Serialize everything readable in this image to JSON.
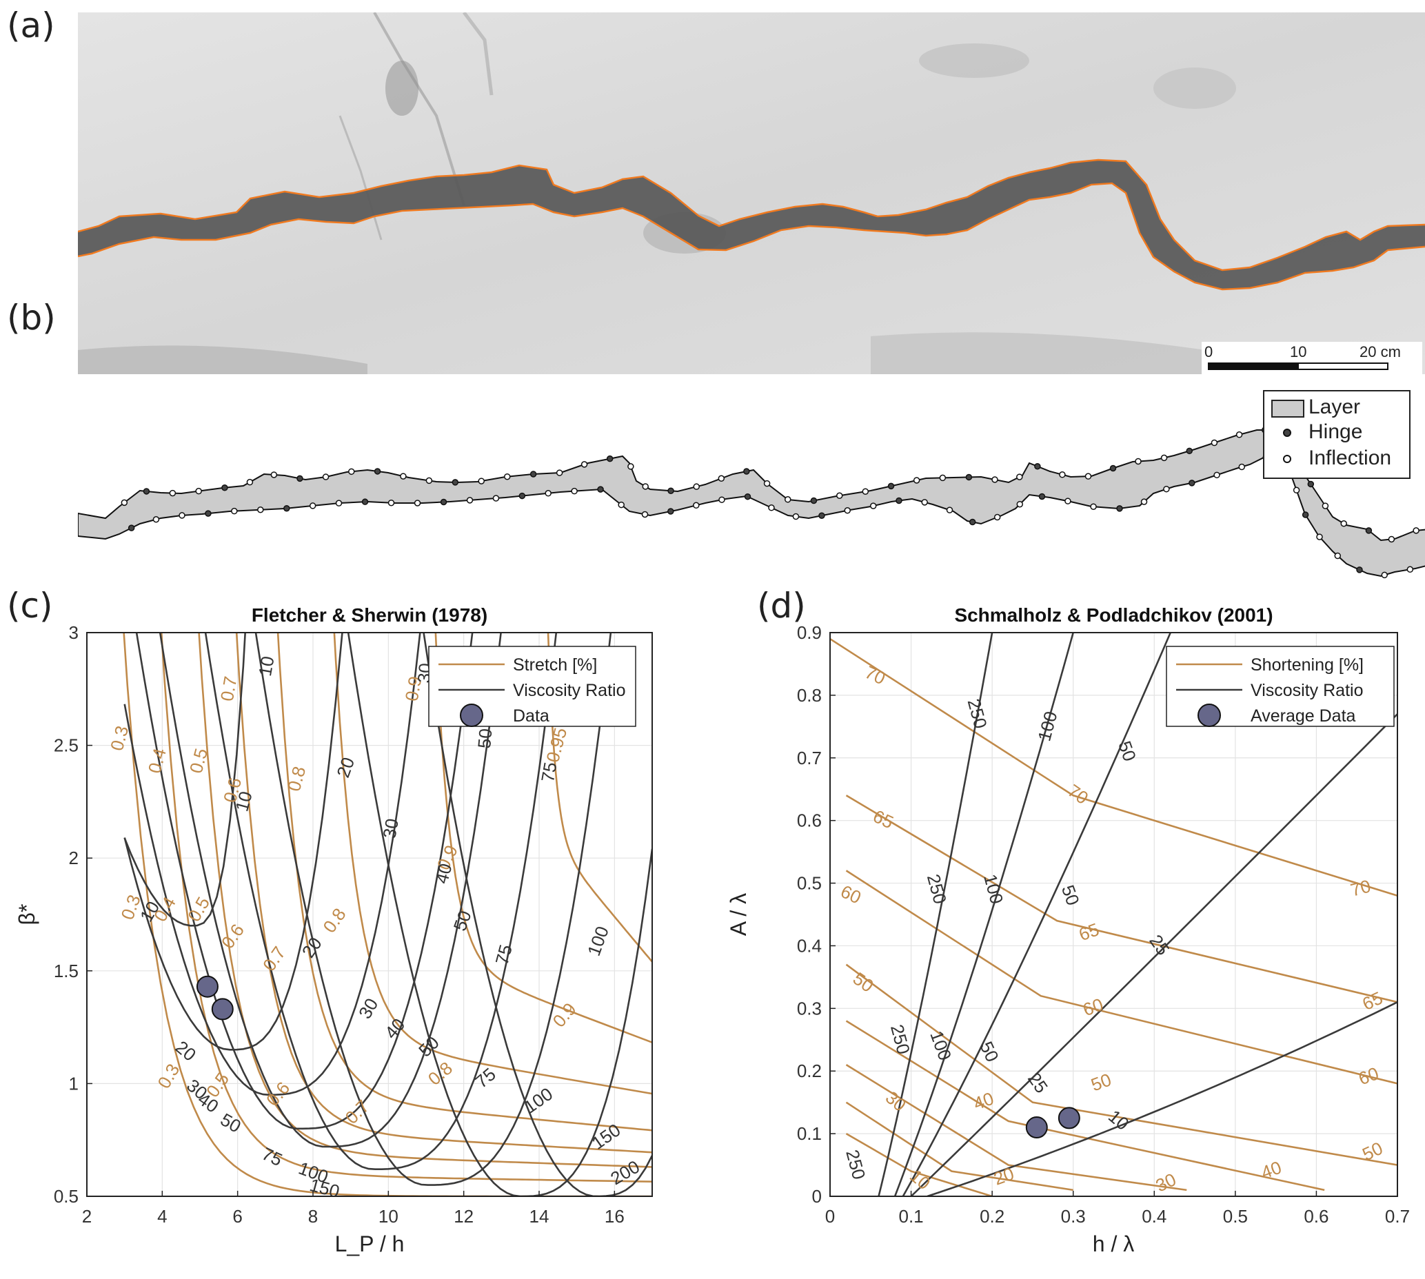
{
  "panels": {
    "a": {
      "letter": "(a)",
      "scalebar": {
        "labels": [
          "0",
          "10",
          "20 cm"
        ]
      }
    },
    "b": {
      "letter": "(b)",
      "legend": [
        {
          "name": "Layer",
          "symbol": "rect"
        },
        {
          "name": "Hinge",
          "symbol": "filled-dot"
        },
        {
          "name": "Inflection",
          "symbol": "open-dot"
        }
      ]
    },
    "c": {
      "letter": "(c)"
    },
    "d": {
      "letter": "(d)"
    }
  },
  "colors": {
    "orange_contour": "#c08a4a",
    "dark_contour": "#3a3a3a",
    "data_marker": "#66678a",
    "layer_fill": "#cccccc",
    "trace_orange": "#f07a20"
  },
  "chart_data": [
    {
      "type": "line",
      "panel": "c",
      "title": "Fletcher & Sherwin (1978)",
      "xlabel": "L_P / h",
      "ylabel": "β*",
      "xlim": [
        2,
        17
      ],
      "ylim": [
        0.5,
        3
      ],
      "xticks": [
        2,
        4,
        6,
        8,
        10,
        12,
        14,
        16
      ],
      "yticks": [
        0.5,
        1,
        1.5,
        2,
        2.5,
        3
      ],
      "ytick_labels": [
        "0.5",
        "1",
        "1.5",
        "2",
        "2.5",
        "3"
      ],
      "grid": true,
      "legend": {
        "placement": "top-right",
        "entries": [
          "Stretch [%]",
          "Viscosity Ratio",
          "Data"
        ]
      },
      "series": [
        {
          "name": "Stretch [%]",
          "values": [
            0.3,
            0.4,
            0.5,
            0.6,
            0.7,
            0.8,
            0.9,
            0.95
          ]
        },
        {
          "name": "Viscosity Ratio",
          "values": [
            10,
            20,
            30,
            40,
            50,
            75,
            100,
            150,
            200
          ]
        },
        {
          "name": "Data",
          "points": [
            [
              5.2,
              1.43
            ],
            [
              5.6,
              1.33
            ]
          ]
        }
      ],
      "contour_labels": [
        {
          "text": "0.3",
          "x": 2.9,
          "y": 2.53,
          "color": "orange",
          "rot": 75
        },
        {
          "text": "0.4",
          "x": 3.9,
          "y": 2.43,
          "color": "orange",
          "rot": 75
        },
        {
          "text": "0.5",
          "x": 5.0,
          "y": 2.43,
          "color": "orange",
          "rot": 75
        },
        {
          "text": "0.6",
          "x": 5.9,
          "y": 2.3,
          "color": "orange",
          "rot": 75
        },
        {
          "text": "0.7",
          "x": 5.8,
          "y": 2.75,
          "color": "orange",
          "rot": 80
        },
        {
          "text": "0.8",
          "x": 7.6,
          "y": 2.35,
          "color": "orange",
          "rot": 75
        },
        {
          "text": "0.9",
          "x": 10.7,
          "y": 2.75,
          "color": "orange",
          "rot": 80
        },
        {
          "text": "0.95",
          "x": 14.5,
          "y": 2.5,
          "color": "orange",
          "rot": 75
        },
        {
          "text": "0.3",
          "x": 3.2,
          "y": 1.78,
          "color": "orange",
          "rot": 70
        },
        {
          "text": "0.4",
          "x": 4.1,
          "y": 1.77,
          "color": "orange",
          "rot": 60
        },
        {
          "text": "0.5",
          "x": 5.0,
          "y": 1.77,
          "color": "orange",
          "rot": 60
        },
        {
          "text": "0.6",
          "x": 5.9,
          "y": 1.65,
          "color": "orange",
          "rot": 55
        },
        {
          "text": "0.7",
          "x": 7.0,
          "y": 1.55,
          "color": "orange",
          "rot": 55
        },
        {
          "text": "0.8",
          "x": 8.6,
          "y": 1.72,
          "color": "orange",
          "rot": 55
        },
        {
          "text": "0.9",
          "x": 11.6,
          "y": 2.0,
          "color": "orange",
          "rot": 65
        },
        {
          "text": "0.9",
          "x": 14.7,
          "y": 1.3,
          "color": "orange",
          "rot": 50
        },
        {
          "text": "0.8",
          "x": 11.4,
          "y": 1.04,
          "color": "orange",
          "rot": 40
        },
        {
          "text": "0.7",
          "x": 9.2,
          "y": 0.87,
          "color": "orange",
          "rot": 45
        },
        {
          "text": "0.6",
          "x": 7.1,
          "y": 0.95,
          "color": "orange",
          "rot": 50
        },
        {
          "text": "0.5",
          "x": 5.5,
          "y": 0.99,
          "color": "orange",
          "rot": 55
        },
        {
          "text": "0.3",
          "x": 4.2,
          "y": 1.03,
          "color": "orange",
          "rot": 60
        },
        {
          "text": "10",
          "x": 6.8,
          "y": 2.85,
          "color": "dark",
          "rot": 80
        },
        {
          "text": "10",
          "x": 6.2,
          "y": 2.25,
          "color": "dark",
          "rot": 75
        },
        {
          "text": "20",
          "x": 8.9,
          "y": 2.4,
          "color": "dark",
          "rot": 70
        },
        {
          "text": "30",
          "x": 11.0,
          "y": 2.82,
          "color": "dark",
          "rot": 85
        },
        {
          "text": "30",
          "x": 10.1,
          "y": 2.13,
          "color": "dark",
          "rot": 80
        },
        {
          "text": "40",
          "x": 11.5,
          "y": 1.93,
          "color": "dark",
          "rot": 75
        },
        {
          "text": "50",
          "x": 12.6,
          "y": 2.53,
          "color": "dark",
          "rot": 85
        },
        {
          "text": "50",
          "x": 12.0,
          "y": 1.72,
          "color": "dark",
          "rot": 70
        },
        {
          "text": "75",
          "x": 14.3,
          "y": 2.38,
          "color": "dark",
          "rot": 80
        },
        {
          "text": "75",
          "x": 13.1,
          "y": 1.57,
          "color": "dark",
          "rot": 75
        },
        {
          "text": "100",
          "x": 15.6,
          "y": 1.63,
          "color": "dark",
          "rot": 70
        },
        {
          "text": "10",
          "x": 3.7,
          "y": 1.76,
          "color": "dark",
          "rot": 60
        },
        {
          "text": "20",
          "x": 8.0,
          "y": 1.6,
          "color": "dark",
          "rot": 55
        },
        {
          "text": "30",
          "x": 9.5,
          "y": 1.33,
          "color": "dark",
          "rot": 60
        },
        {
          "text": "40",
          "x": 10.2,
          "y": 1.24,
          "color": "dark",
          "rot": 50
        },
        {
          "text": "50",
          "x": 11.1,
          "y": 1.16,
          "color": "dark",
          "rot": 45
        },
        {
          "text": "75",
          "x": 12.6,
          "y": 1.02,
          "color": "dark",
          "rot": 40
        },
        {
          "text": "100",
          "x": 14.0,
          "y": 0.92,
          "color": "dark",
          "rot": 35
        },
        {
          "text": "150",
          "x": 15.8,
          "y": 0.76,
          "color": "dark",
          "rot": 35
        },
        {
          "text": "200",
          "x": 16.3,
          "y": 0.6,
          "color": "dark",
          "rot": 30
        },
        {
          "text": "20",
          "x": 4.6,
          "y": 1.14,
          "color": "dark",
          "rot": -40
        },
        {
          "text": "30",
          "x": 4.9,
          "y": 0.97,
          "color": "dark",
          "rot": -40
        },
        {
          "text": "40",
          "x": 5.2,
          "y": 0.91,
          "color": "dark",
          "rot": -35
        },
        {
          "text": "50",
          "x": 5.8,
          "y": 0.82,
          "color": "dark",
          "rot": -30
        },
        {
          "text": "75",
          "x": 6.9,
          "y": 0.67,
          "color": "dark",
          "rot": -25
        },
        {
          "text": "100",
          "x": 8.0,
          "y": 0.6,
          "color": "dark",
          "rot": -20
        },
        {
          "text": "150",
          "x": 8.3,
          "y": 0.53,
          "color": "dark",
          "rot": -15
        }
      ]
    },
    {
      "type": "line",
      "panel": "d",
      "title": "Schmalholz & Podladchikov (2001)",
      "xlabel": "h / λ",
      "ylabel": "A / λ",
      "xlim": [
        0,
        0.7
      ],
      "ylim": [
        0,
        0.9
      ],
      "xticks": [
        0,
        0.1,
        0.2,
        0.3,
        0.4,
        0.5,
        0.6,
        0.7
      ],
      "yticks": [
        0,
        0.1,
        0.2,
        0.3,
        0.4,
        0.5,
        0.6,
        0.7,
        0.8,
        0.9
      ],
      "grid": true,
      "legend": {
        "placement": "top-right",
        "entries": [
          "Shortening [%]",
          "Viscosity Ratio",
          "Average Data"
        ]
      },
      "series": [
        {
          "name": "Shortening [%]",
          "values": [
            10,
            20,
            30,
            40,
            50,
            60,
            65,
            70
          ]
        },
        {
          "name": "Viscosity Ratio",
          "values": [
            10,
            25,
            50,
            100,
            250
          ]
        },
        {
          "name": "Average Data",
          "points": [
            [
              0.255,
              0.11
            ],
            [
              0.295,
              0.125
            ]
          ]
        }
      ],
      "contour_labels": [
        {
          "text": "70",
          "x": 0.055,
          "y": 0.83,
          "color": "orange",
          "rot": -25
        },
        {
          "text": "70",
          "x": 0.305,
          "y": 0.64,
          "color": "orange",
          "rot": -35
        },
        {
          "text": "70",
          "x": 0.655,
          "y": 0.49,
          "color": "orange",
          "rot": 15
        },
        {
          "text": "65",
          "x": 0.065,
          "y": 0.6,
          "color": "orange",
          "rot": -25
        },
        {
          "text": "65",
          "x": 0.32,
          "y": 0.42,
          "color": "orange",
          "rot": 20
        },
        {
          "text": "65",
          "x": 0.67,
          "y": 0.31,
          "color": "orange",
          "rot": 25
        },
        {
          "text": "60",
          "x": 0.025,
          "y": 0.48,
          "color": "orange",
          "rot": -25
        },
        {
          "text": "60",
          "x": 0.325,
          "y": 0.3,
          "color": "orange",
          "rot": 20
        },
        {
          "text": "60",
          "x": 0.665,
          "y": 0.19,
          "color": "orange",
          "rot": 20
        },
        {
          "text": "50",
          "x": 0.04,
          "y": 0.34,
          "color": "orange",
          "rot": -35
        },
        {
          "text": "50",
          "x": 0.335,
          "y": 0.18,
          "color": "orange",
          "rot": 20
        },
        {
          "text": "50",
          "x": 0.67,
          "y": 0.07,
          "color": "orange",
          "rot": 25
        },
        {
          "text": "40",
          "x": 0.19,
          "y": 0.15,
          "color": "orange",
          "rot": 20
        },
        {
          "text": "40",
          "x": 0.545,
          "y": 0.04,
          "color": "orange",
          "rot": 20
        },
        {
          "text": "30",
          "x": 0.08,
          "y": 0.15,
          "color": "orange",
          "rot": -40
        },
        {
          "text": "30",
          "x": 0.415,
          "y": 0.02,
          "color": "orange",
          "rot": 25
        },
        {
          "text": "20",
          "x": 0.215,
          "y": 0.03,
          "color": "orange",
          "rot": 20
        },
        {
          "text": "10",
          "x": 0.11,
          "y": 0.025,
          "color": "orange",
          "rot": -40
        },
        {
          "text": "250",
          "x": 0.18,
          "y": 0.77,
          "color": "dark",
          "rot": -75
        },
        {
          "text": "100",
          "x": 0.27,
          "y": 0.75,
          "color": "dark",
          "rot": 75
        },
        {
          "text": "50",
          "x": 0.365,
          "y": 0.71,
          "color": "dark",
          "rot": -70
        },
        {
          "text": "250",
          "x": 0.13,
          "y": 0.49,
          "color": "dark",
          "rot": -75
        },
        {
          "text": "100",
          "x": 0.2,
          "y": 0.49,
          "color": "dark",
          "rot": -75
        },
        {
          "text": "50",
          "x": 0.295,
          "y": 0.48,
          "color": "dark",
          "rot": -70
        },
        {
          "text": "25",
          "x": 0.405,
          "y": 0.4,
          "color": "dark",
          "rot": -55
        },
        {
          "text": "250",
          "x": 0.085,
          "y": 0.25,
          "color": "dark",
          "rot": -75
        },
        {
          "text": "100",
          "x": 0.135,
          "y": 0.24,
          "color": "dark",
          "rot": -70
        },
        {
          "text": "50",
          "x": 0.195,
          "y": 0.23,
          "color": "dark",
          "rot": -65
        },
        {
          "text": "25",
          "x": 0.255,
          "y": 0.18,
          "color": "dark",
          "rot": -55
        },
        {
          "text": "10",
          "x": 0.355,
          "y": 0.12,
          "color": "dark",
          "rot": -40
        },
        {
          "text": "250",
          "x": 0.03,
          "y": 0.05,
          "color": "dark",
          "rot": -75
        }
      ]
    }
  ]
}
